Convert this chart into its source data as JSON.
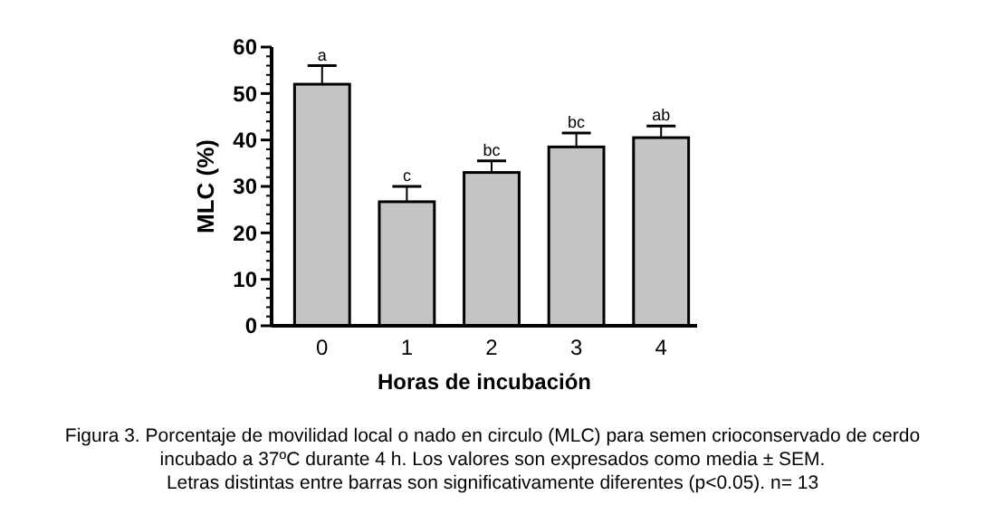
{
  "chart_data": {
    "type": "bar",
    "xlabel": "Horas de incubación",
    "ylabel": "MLC (%)",
    "categories": [
      "0",
      "1",
      "2",
      "3",
      "4"
    ],
    "values": [
      52,
      26.7,
      33,
      38.5,
      40.5
    ],
    "errors": [
      4,
      3.3,
      2.5,
      3,
      2.5
    ],
    "color": "#c4c4c4",
    "ylim": [
      0,
      60
    ],
    "yticks": [
      0,
      10,
      20,
      30,
      40,
      50,
      60
    ],
    "annotations": [
      {
        "text": "a",
        "x": "0",
        "y": 56
      },
      {
        "text": "c",
        "x": "1",
        "y": 30
      },
      {
        "text": "bc",
        "x": "2",
        "y": 35.5
      },
      {
        "text": "bc",
        "x": "3",
        "y": 41.5
      },
      {
        "text": "ab",
        "x": "4",
        "y": 43
      },
      "Figura 3. Porcentaje de movilidad local o nado en circulo (MLC) para semen crioconservado de cerdo",
      "incubado a 37ºC durante 4 h. Los valores son expresados como media ± SEM.",
      "Letras distintas entre barras son significativamente diferentes (p<0.05). n= 13"
    ]
  }
}
